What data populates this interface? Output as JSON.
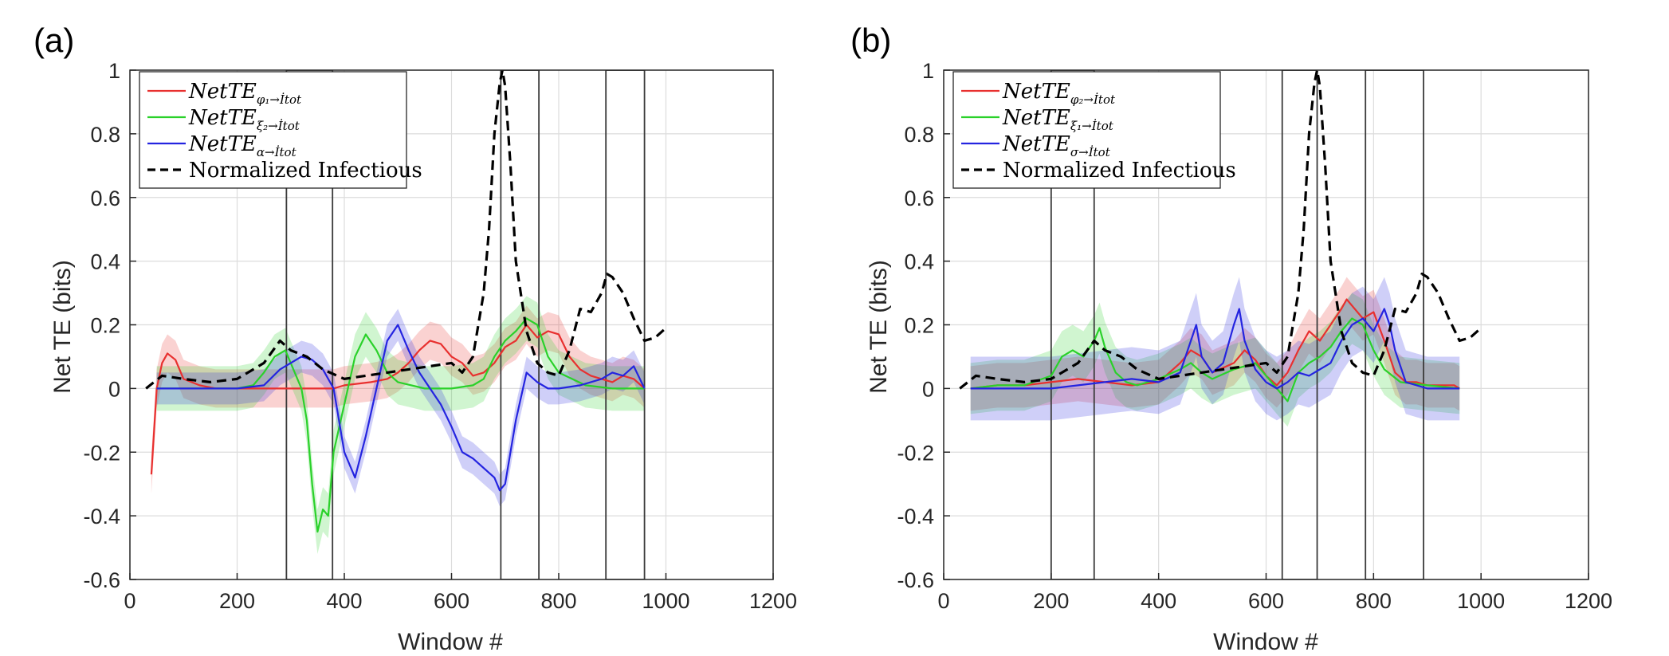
{
  "chart_data": [
    {
      "type": "line",
      "panel_label": "(a)",
      "title": "",
      "xlabel": "Window #",
      "ylabel": "Net TE (bits)",
      "xlim": [
        0,
        1200
      ],
      "ylim": [
        -0.6,
        1
      ],
      "xticks": [
        "0",
        "200",
        "400",
        "600",
        "800",
        "1000",
        "1200"
      ],
      "yticks": [
        "-0.6",
        "-0.4",
        "-0.2",
        "0",
        "0.2",
        "0.4",
        "0.6",
        "0.8",
        "1"
      ],
      "grid": true,
      "legend_position": "top-left",
      "highlight_windows": [
        [
          292,
          378
        ],
        [
          692,
          763
        ],
        [
          888,
          960
        ]
      ],
      "series": [
        {
          "name": "NetTE",
          "legend_sub": "φ₁→İtot",
          "color": "#e8302f",
          "style": "solid",
          "band": 0.06,
          "x": [
            40,
            50,
            60,
            70,
            85,
            100,
            130,
            160,
            200,
            240,
            280,
            300,
            330,
            360,
            380,
            400,
            450,
            480,
            500,
            520,
            540,
            560,
            580,
            600,
            620,
            640,
            660,
            680,
            700,
            720,
            740,
            760,
            780,
            800,
            820,
            840,
            860,
            880,
            900,
            920,
            940,
            960
          ],
          "y": [
            -0.27,
            0.0,
            0.08,
            0.11,
            0.09,
            0.03,
            0.01,
            0.0,
            0.0,
            0.0,
            0.0,
            0.0,
            0.0,
            0.0,
            0.0,
            0.01,
            0.02,
            0.03,
            0.05,
            0.08,
            0.12,
            0.15,
            0.14,
            0.1,
            0.08,
            0.04,
            0.05,
            0.08,
            0.13,
            0.15,
            0.2,
            0.16,
            0.18,
            0.17,
            0.1,
            0.06,
            0.04,
            0.03,
            0.02,
            0.04,
            0.03,
            0.0
          ]
        },
        {
          "name": "NetTE",
          "legend_sub": "ξ₂→İtot",
          "color": "#2ad12a",
          "style": "solid",
          "band": 0.07,
          "x": [
            50,
            100,
            150,
            200,
            230,
            250,
            270,
            290,
            300,
            320,
            330,
            340,
            350,
            360,
            370,
            380,
            400,
            420,
            440,
            460,
            480,
            500,
            550,
            600,
            640,
            660,
            680,
            700,
            720,
            740,
            760,
            780,
            800,
            850,
            900,
            950,
            960
          ],
          "y": [
            0.0,
            0.0,
            0.0,
            0.0,
            0.01,
            0.05,
            0.1,
            0.12,
            0.08,
            0.0,
            -0.1,
            -0.3,
            -0.45,
            -0.38,
            -0.4,
            -0.2,
            -0.05,
            0.1,
            0.17,
            0.12,
            0.05,
            0.02,
            0.0,
            0.0,
            0.01,
            0.03,
            0.1,
            0.15,
            0.18,
            0.22,
            0.2,
            0.1,
            0.05,
            0.01,
            0.0,
            0.0,
            0.0
          ]
        },
        {
          "name": "NetTE",
          "legend_sub": "α→İtot",
          "color": "#2424e0",
          "style": "solid",
          "band": 0.05,
          "x": [
            50,
            100,
            150,
            200,
            250,
            280,
            300,
            320,
            340,
            360,
            380,
            400,
            420,
            440,
            460,
            480,
            500,
            520,
            540,
            560,
            580,
            600,
            620,
            640,
            660,
            680,
            690,
            700,
            720,
            740,
            760,
            780,
            800,
            840,
            880,
            900,
            920,
            940,
            960
          ],
          "y": [
            0.0,
            0.0,
            0.0,
            0.0,
            0.01,
            0.06,
            0.08,
            0.1,
            0.09,
            0.06,
            0.0,
            -0.2,
            -0.28,
            -0.15,
            0.0,
            0.15,
            0.2,
            0.12,
            0.05,
            0.0,
            -0.05,
            -0.12,
            -0.2,
            -0.22,
            -0.25,
            -0.28,
            -0.32,
            -0.3,
            -0.1,
            0.05,
            0.02,
            0.0,
            0.0,
            0.01,
            0.03,
            0.05,
            0.04,
            0.07,
            0.0
          ]
        },
        {
          "name": "Normalized Infectious",
          "legend_sub": "",
          "color": "#000000",
          "style": "dashed",
          "band": 0,
          "x": [
            30,
            60,
            100,
            150,
            200,
            250,
            280,
            300,
            330,
            360,
            400,
            440,
            480,
            520,
            560,
            600,
            620,
            640,
            660,
            670,
            680,
            690,
            695,
            700,
            710,
            720,
            740,
            760,
            780,
            800,
            820,
            840,
            860,
            880,
            890,
            900,
            920,
            940,
            960,
            980,
            1000
          ],
          "y": [
            0.0,
            0.04,
            0.03,
            0.02,
            0.03,
            0.08,
            0.15,
            0.12,
            0.1,
            0.06,
            0.03,
            0.04,
            0.05,
            0.06,
            0.07,
            0.08,
            0.05,
            0.1,
            0.3,
            0.5,
            0.8,
            0.96,
            1.0,
            0.95,
            0.7,
            0.4,
            0.18,
            0.08,
            0.05,
            0.04,
            0.12,
            0.25,
            0.24,
            0.3,
            0.36,
            0.35,
            0.3,
            0.22,
            0.15,
            0.16,
            0.19
          ]
        }
      ]
    },
    {
      "type": "line",
      "panel_label": "(b)",
      "title": "",
      "xlabel": "Window #",
      "ylabel": "Net TE (bits)",
      "xlim": [
        0,
        1200
      ],
      "ylim": [
        -0.6,
        1
      ],
      "xticks": [
        "0",
        "200",
        "400",
        "600",
        "800",
        "1000",
        "1200"
      ],
      "yticks": [
        "-0.6",
        "-0.4",
        "-0.2",
        "0",
        "0.2",
        "0.4",
        "0.6",
        "0.8",
        "1"
      ],
      "grid": true,
      "legend_position": "top-left",
      "highlight_windows": [
        [
          200,
          280
        ],
        [
          630,
          695
        ],
        [
          785,
          893
        ]
      ],
      "series": [
        {
          "name": "NetTE",
          "legend_sub": "φ₂→İtot",
          "color": "#e8302f",
          "style": "solid",
          "band": 0.07,
          "x": [
            50,
            100,
            150,
            200,
            250,
            300,
            350,
            400,
            440,
            460,
            480,
            500,
            540,
            560,
            580,
            600,
            620,
            640,
            660,
            680,
            700,
            720,
            740,
            750,
            760,
            780,
            800,
            820,
            840,
            860,
            880,
            900,
            950,
            960
          ],
          "y": [
            0.0,
            0.01,
            0.01,
            0.02,
            0.03,
            0.02,
            0.01,
            0.02,
            0.08,
            0.12,
            0.1,
            0.05,
            0.08,
            0.12,
            0.09,
            0.04,
            0.01,
            0.05,
            0.12,
            0.18,
            0.15,
            0.2,
            0.25,
            0.28,
            0.26,
            0.22,
            0.24,
            0.15,
            0.05,
            0.02,
            0.02,
            0.01,
            0.01,
            0.0
          ]
        },
        {
          "name": "NetTE",
          "legend_sub": "ξ₁→İtot",
          "color": "#2ad12a",
          "style": "solid",
          "band": 0.08,
          "x": [
            50,
            100,
            150,
            200,
            220,
            240,
            260,
            280,
            290,
            300,
            320,
            340,
            360,
            400,
            440,
            460,
            480,
            500,
            540,
            580,
            600,
            620,
            640,
            660,
            680,
            700,
            720,
            740,
            760,
            780,
            800,
            820,
            850,
            900,
            960
          ],
          "y": [
            0.0,
            0.01,
            0.01,
            0.04,
            0.1,
            0.12,
            0.1,
            0.15,
            0.19,
            0.13,
            0.05,
            0.02,
            0.01,
            0.03,
            0.06,
            0.08,
            0.05,
            0.03,
            0.06,
            0.08,
            0.04,
            0.0,
            -0.04,
            0.05,
            0.08,
            0.1,
            0.13,
            0.18,
            0.22,
            0.2,
            0.12,
            0.06,
            0.02,
            0.01,
            0.0
          ]
        },
        {
          "name": "NetTE",
          "legend_sub": "σ→İtot",
          "color": "#2424e0",
          "style": "solid",
          "band": 0.1,
          "x": [
            50,
            100,
            150,
            200,
            250,
            300,
            350,
            400,
            440,
            460,
            470,
            480,
            500,
            520,
            540,
            550,
            560,
            580,
            600,
            620,
            640,
            660,
            680,
            700,
            720,
            740,
            760,
            780,
            800,
            820,
            830,
            840,
            860,
            900,
            960
          ],
          "y": [
            0.0,
            0.0,
            0.0,
            0.0,
            0.01,
            0.02,
            0.03,
            0.02,
            0.05,
            0.15,
            0.2,
            0.1,
            0.05,
            0.08,
            0.2,
            0.25,
            0.15,
            0.06,
            0.02,
            0.0,
            0.02,
            0.05,
            0.04,
            0.06,
            0.08,
            0.15,
            0.2,
            0.22,
            0.18,
            0.25,
            0.2,
            0.12,
            0.02,
            0.0,
            0.0
          ]
        },
        {
          "name": "Normalized Infectious",
          "legend_sub": "",
          "color": "#000000",
          "style": "dashed",
          "band": 0,
          "x": [
            30,
            60,
            100,
            150,
            200,
            250,
            280,
            300,
            330,
            360,
            400,
            440,
            480,
            520,
            560,
            600,
            620,
            640,
            660,
            670,
            680,
            690,
            695,
            700,
            710,
            720,
            740,
            760,
            780,
            800,
            820,
            840,
            860,
            880,
            890,
            900,
            920,
            940,
            960,
            980,
            1000
          ],
          "y": [
            0.0,
            0.04,
            0.03,
            0.02,
            0.03,
            0.08,
            0.15,
            0.12,
            0.1,
            0.06,
            0.03,
            0.04,
            0.05,
            0.06,
            0.07,
            0.08,
            0.05,
            0.1,
            0.3,
            0.5,
            0.8,
            0.96,
            1.0,
            0.95,
            0.7,
            0.4,
            0.18,
            0.08,
            0.05,
            0.04,
            0.12,
            0.25,
            0.24,
            0.3,
            0.36,
            0.35,
            0.3,
            0.22,
            0.15,
            0.16,
            0.19
          ]
        }
      ]
    }
  ]
}
